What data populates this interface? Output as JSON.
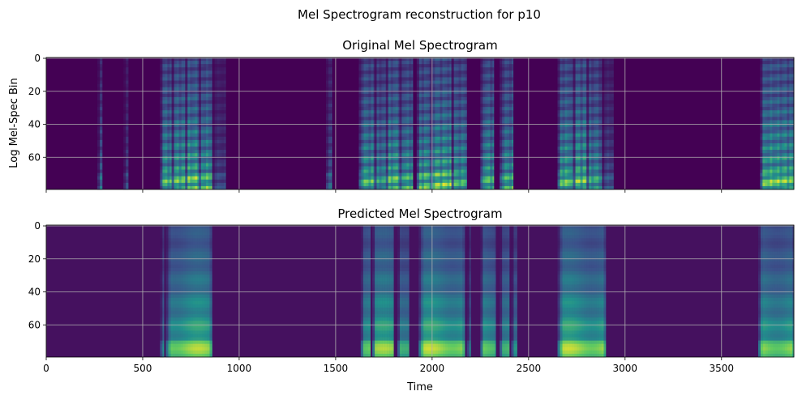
{
  "chart_data": {
    "type": "heatmap",
    "suptitle": "Mel Spectrogram reconstruction for p10",
    "xlabel": "Time",
    "xlim": [
      0,
      3875
    ],
    "x_ticks": [
      0,
      500,
      1000,
      1500,
      2000,
      2500,
      3000,
      3500
    ],
    "y_ticks": [
      0,
      20,
      40,
      60
    ],
    "grid": true,
    "colormap": "viridis",
    "colormap_stops": [
      "#440154",
      "#3b528b",
      "#21918c",
      "#5ec962",
      "#fde725"
    ],
    "panels": [
      {
        "title": "Original Mel Spectrogram",
        "ylabel": "Log Mel-Spec Bin",
        "ylim": [
          79.5,
          -0.5
        ],
        "show_x_tick_labels": false,
        "speech_segments": [
          [
            265,
            290,
            0.45
          ],
          [
            400,
            425,
            0.3
          ],
          [
            590,
            650,
            0.85
          ],
          [
            650,
            720,
            0.9
          ],
          [
            720,
            790,
            0.95
          ],
          [
            790,
            860,
            0.85
          ],
          [
            860,
            930,
            0.3
          ],
          [
            1450,
            1480,
            0.5
          ],
          [
            1620,
            1700,
            0.85
          ],
          [
            1700,
            1760,
            0.7
          ],
          [
            1760,
            1830,
            0.9
          ],
          [
            1830,
            1900,
            0.8
          ],
          [
            1920,
            1990,
            0.85
          ],
          [
            1990,
            2100,
            0.95
          ],
          [
            2100,
            2180,
            0.8
          ],
          [
            2250,
            2320,
            0.85
          ],
          [
            2350,
            2420,
            0.8
          ],
          [
            2650,
            2730,
            0.9
          ],
          [
            2730,
            2800,
            0.95
          ],
          [
            2800,
            2880,
            0.75
          ],
          [
            2880,
            2940,
            0.35
          ],
          [
            3700,
            3875,
            0.95
          ]
        ]
      },
      {
        "title": "Predicted Mel Spectrogram",
        "ylabel": "",
        "ylim": [
          79.5,
          -0.5
        ],
        "show_x_tick_labels": true,
        "speech_segments": [
          [
            590,
            610,
            0.55
          ],
          [
            620,
            860,
            0.9
          ],
          [
            1630,
            1680,
            0.85
          ],
          [
            1690,
            1800,
            0.88
          ],
          [
            1820,
            1880,
            0.75
          ],
          [
            1930,
            2170,
            0.92
          ],
          [
            2180,
            2200,
            0.45
          ],
          [
            2250,
            2330,
            0.8
          ],
          [
            2350,
            2400,
            0.75
          ],
          [
            2410,
            2440,
            0.55
          ],
          [
            2650,
            2900,
            0.92
          ],
          [
            3690,
            3875,
            0.88
          ]
        ]
      }
    ]
  }
}
